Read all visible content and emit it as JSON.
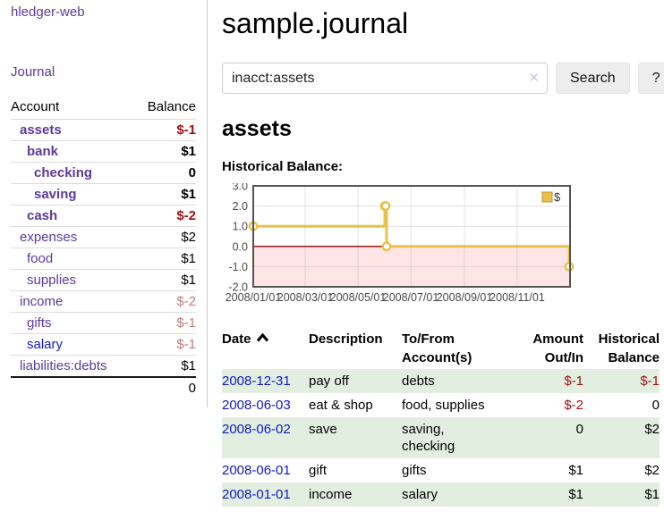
{
  "colors": {
    "purple": "#5d3a9c",
    "blue": "#1317c9",
    "neg": "#9e1010",
    "negsoft": "#c07c7c",
    "stripe": "#e2efe0"
  },
  "sidebar": {
    "brand": "hledger-web",
    "journal_link": "Journal",
    "accounts": {
      "col_account": "Account",
      "col_balance": "Balance",
      "rows": [
        {
          "name": "assets",
          "balance": "$-1",
          "level": 1,
          "bold": true,
          "name_color": "purple",
          "balance_color": "negative"
        },
        {
          "name": "bank",
          "balance": "$1",
          "level": 2,
          "bold": true,
          "name_color": "purple",
          "balance_color": "normal"
        },
        {
          "name": "checking",
          "balance": "0",
          "level": 3,
          "bold": true,
          "name_color": "purple",
          "balance_color": "normal"
        },
        {
          "name": "saving",
          "balance": "$1",
          "level": 3,
          "bold": true,
          "name_color": "purple",
          "balance_color": "normal"
        },
        {
          "name": "cash",
          "balance": "$-2",
          "level": 2,
          "bold": true,
          "name_color": "purple",
          "balance_color": "negative"
        },
        {
          "name": "expenses",
          "balance": "$2",
          "level": 1,
          "bold": false,
          "name_color": "purple",
          "balance_color": "normal"
        },
        {
          "name": "food",
          "balance": "$1",
          "level": 2,
          "bold": false,
          "name_color": "purple",
          "balance_color": "normal"
        },
        {
          "name": "supplies",
          "balance": "$1",
          "level": 2,
          "bold": false,
          "name_color": "purple",
          "balance_color": "normal"
        },
        {
          "name": "income",
          "balance": "$-2",
          "level": 1,
          "bold": false,
          "name_color": "purple",
          "balance_color": "negative-soft"
        },
        {
          "name": "gifts",
          "balance": "$-1",
          "level": 2,
          "bold": false,
          "name_color": "purple",
          "balance_color": "negative-soft"
        },
        {
          "name": "salary",
          "balance": "$-1",
          "level": 2,
          "bold": false,
          "name_color": "blue",
          "balance_color": "negative-soft"
        },
        {
          "name": "liabilities:debts",
          "balance": "$1",
          "level": 1,
          "bold": false,
          "name_color": "purple",
          "balance_color": "normal"
        }
      ],
      "total": "0"
    }
  },
  "main": {
    "title": "sample.journal",
    "search": {
      "value": "inacct:assets",
      "clear_icon": "✕",
      "button_label": "Search",
      "help_label": "?"
    },
    "account_heading": "assets",
    "chart_heading": "Historical Balance:",
    "register": {
      "columns": [
        "Date",
        "Description",
        "To/From Account(s)",
        "Amount Out/In",
        "Historical Balance"
      ],
      "sort_icon": "chevron-up",
      "rows": [
        {
          "date": "2008-12-31",
          "description": "pay off",
          "accounts": "debts",
          "amount": "$-1",
          "amount_negative": true,
          "balance": "$-1",
          "balance_negative": true,
          "shaded": true
        },
        {
          "date": "2008-06-03",
          "description": "eat & shop",
          "accounts": "food, supplies",
          "amount": "$-2",
          "amount_negative": true,
          "balance": "0",
          "balance_negative": false,
          "shaded": false
        },
        {
          "date": "2008-06-02",
          "description": "save",
          "accounts": "saving, checking",
          "amount": "0",
          "amount_negative": false,
          "balance": "$2",
          "balance_negative": false,
          "shaded": true
        },
        {
          "date": "2008-06-01",
          "description": "gift",
          "accounts": "gifts",
          "amount": "$1",
          "amount_negative": false,
          "balance": "$2",
          "balance_negative": false,
          "shaded": false
        },
        {
          "date": "2008-01-01",
          "description": "income",
          "accounts": "salary",
          "amount": "$1",
          "amount_negative": false,
          "balance": "$1",
          "balance_negative": false,
          "shaded": true
        }
      ]
    }
  },
  "chart_data": {
    "type": "line",
    "step": true,
    "title": "Historical Balance:",
    "legend": [
      {
        "label": "$",
        "color": "#e8c04a"
      }
    ],
    "legend_position": "top-right",
    "grid": true,
    "ylim": [
      -2.0,
      3.0
    ],
    "yticks": [
      3.0,
      2.0,
      1.0,
      0.0,
      -1.0,
      -2.0
    ],
    "x_range_days": [
      0,
      366
    ],
    "xticks": [
      {
        "label": "2008/01/01",
        "day": 0
      },
      {
        "label": "2008/03/01",
        "day": 60
      },
      {
        "label": "2008/05/01",
        "day": 121
      },
      {
        "label": "2008/07/01",
        "day": 182
      },
      {
        "label": "2008/09/01",
        "day": 244
      },
      {
        "label": "2008/11/01",
        "day": 305
      }
    ],
    "series": [
      {
        "name": "$",
        "color": "#e8c04a",
        "points": [
          {
            "date": "2008-01-01",
            "day": 0,
            "value": 1
          },
          {
            "date": "2008-06-01",
            "day": 152,
            "value": 2
          },
          {
            "date": "2008-06-02",
            "day": 153,
            "value": 2
          },
          {
            "date": "2008-06-03",
            "day": 154,
            "value": 0
          },
          {
            "date": "2008-12-31",
            "day": 365,
            "value": -1
          }
        ]
      }
    ],
    "negative_region": true,
    "negative_fill": "#ff6060",
    "negative_fill_opacity": 0.16,
    "zero_line_color": "#8f0000",
    "grid_color": "#e3e3e3",
    "plot_border_color": "#545454"
  }
}
